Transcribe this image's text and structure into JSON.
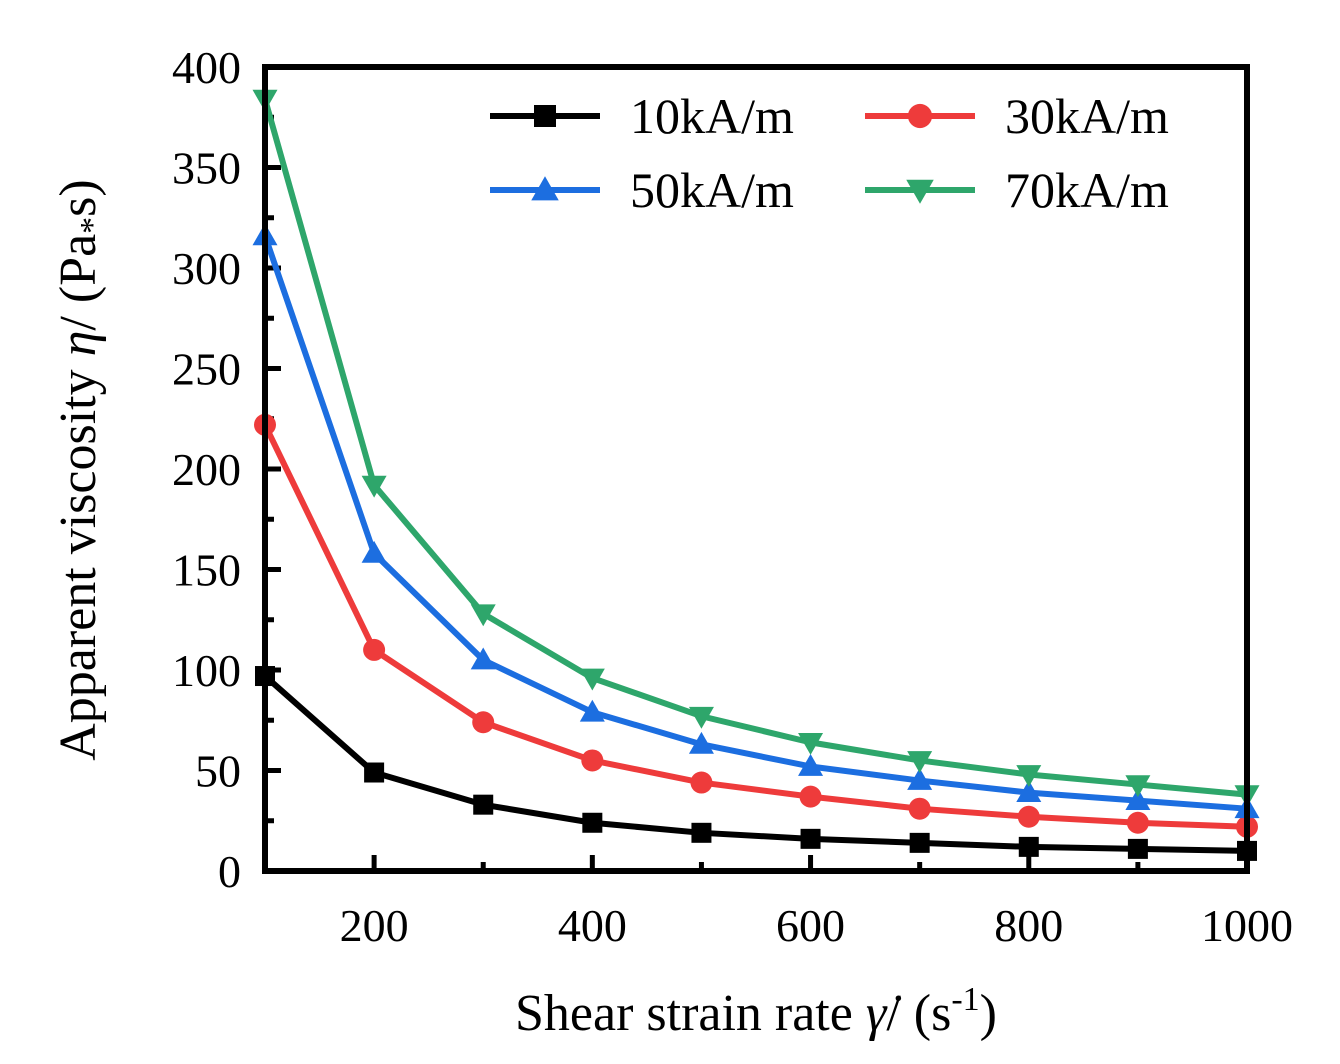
{
  "chart_data": {
    "type": "line",
    "title": "",
    "xlabel": {
      "main": "Shear strain rate ",
      "symbol": "γ̇",
      "unit_open": "/ (s",
      "unit_sup": "-1",
      "unit_close": ")"
    },
    "ylabel": {
      "main": "Apparent viscosity ",
      "symbol": "η",
      "unit_open": "/ (Pa",
      "unit_sub": "*",
      "unit_close": "s)"
    },
    "xlim": [
      100,
      1000
    ],
    "ylim": [
      0,
      400
    ],
    "x_ticks": [
      200,
      400,
      600,
      800,
      1000
    ],
    "x_minor_ticks": [
      300,
      500,
      700,
      900
    ],
    "y_ticks": [
      0,
      50,
      100,
      150,
      200,
      250,
      300,
      350,
      400
    ],
    "y_minor_ticks": [
      25,
      75,
      125,
      175,
      225,
      275,
      325,
      375
    ],
    "grid": false,
    "legend_position": "top-right",
    "x": [
      100,
      200,
      300,
      400,
      500,
      600,
      700,
      800,
      900,
      1000
    ],
    "series": [
      {
        "name": "10kA/m",
        "color": "#000000",
        "marker": "square",
        "values": [
          97,
          49,
          33,
          24,
          19,
          16,
          14,
          12,
          11,
          10
        ]
      },
      {
        "name": "30kA/m",
        "color": "#ee3b3b",
        "marker": "circle",
        "values": [
          222,
          110,
          74,
          55,
          44,
          37,
          31,
          27,
          24,
          22
        ]
      },
      {
        "name": "50kA/m",
        "color": "#1c6ee0",
        "marker": "triangle-up",
        "values": [
          316,
          158,
          105,
          79,
          63,
          52,
          45,
          39,
          35,
          31
        ]
      },
      {
        "name": "70kA/m",
        "color": "#2ea66b",
        "marker": "triangle-down",
        "values": [
          384,
          192,
          128,
          96,
          77,
          64,
          55,
          48,
          43,
          38
        ]
      }
    ]
  }
}
